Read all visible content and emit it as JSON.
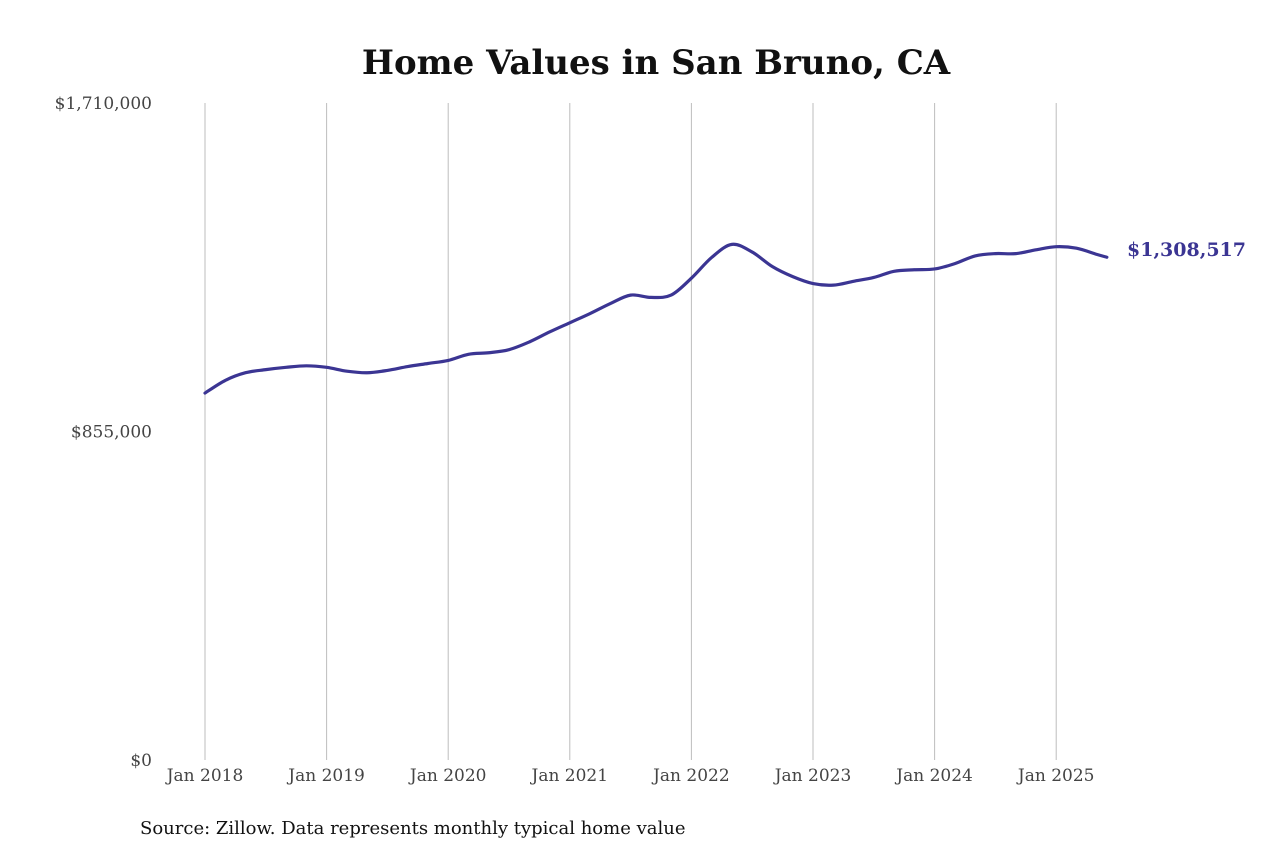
{
  "chart_data": {
    "type": "line",
    "title": "Home Values in San Bruno, CA",
    "source_note": "Source: Zillow. Data represents monthly typical home value",
    "xlabel": "",
    "ylabel": "",
    "ylim": [
      0,
      1710000
    ],
    "y_ticks": [
      {
        "value": 0,
        "label": "$0"
      },
      {
        "value": 855000,
        "label": "$855,000"
      },
      {
        "value": 1710000,
        "label": "$1,710,000"
      }
    ],
    "x_ticks": [
      {
        "value": "2018-01",
        "label": "Jan 2018"
      },
      {
        "value": "2019-01",
        "label": "Jan 2019"
      },
      {
        "value": "2020-01",
        "label": "Jan 2020"
      },
      {
        "value": "2021-01",
        "label": "Jan 2021"
      },
      {
        "value": "2022-01",
        "label": "Jan 2022"
      },
      {
        "value": "2023-01",
        "label": "Jan 2023"
      },
      {
        "value": "2024-01",
        "label": "Jan 2024"
      },
      {
        "value": "2025-01",
        "label": "Jan 2025"
      }
    ],
    "grid": {
      "vertical": true,
      "horizontal": false
    },
    "line_color": "#3b3593",
    "end_label": "$1,308,517",
    "series": [
      {
        "x": [
          "2018-01",
          "2018-03",
          "2018-05",
          "2018-07",
          "2018-09",
          "2018-11",
          "2019-01",
          "2019-03",
          "2019-05",
          "2019-07",
          "2019-09",
          "2019-11",
          "2020-01",
          "2020-03",
          "2020-05",
          "2020-07",
          "2020-09",
          "2020-11",
          "2021-01",
          "2021-03",
          "2021-05",
          "2021-07",
          "2021-09",
          "2021-11",
          "2022-01",
          "2022-03",
          "2022-05",
          "2022-07",
          "2022-09",
          "2022-11",
          "2023-01",
          "2023-03",
          "2023-05",
          "2023-07",
          "2023-09",
          "2023-11",
          "2024-01",
          "2024-03",
          "2024-05",
          "2024-07",
          "2024-09",
          "2024-11",
          "2025-01",
          "2025-03",
          "2025-05",
          "2025-06"
        ],
        "values": [
          955000,
          988000,
          1008000,
          1016000,
          1022000,
          1026000,
          1022000,
          1012000,
          1008000,
          1014000,
          1024000,
          1032000,
          1040000,
          1056000,
          1060000,
          1068000,
          1088000,
          1114000,
          1138000,
          1162000,
          1188000,
          1210000,
          1204000,
          1210000,
          1254000,
          1308000,
          1342000,
          1322000,
          1284000,
          1258000,
          1240000,
          1236000,
          1246000,
          1256000,
          1272000,
          1276000,
          1278000,
          1292000,
          1312000,
          1318000,
          1318000,
          1328000,
          1336000,
          1332000,
          1316000,
          1308517
        ]
      }
    ]
  }
}
